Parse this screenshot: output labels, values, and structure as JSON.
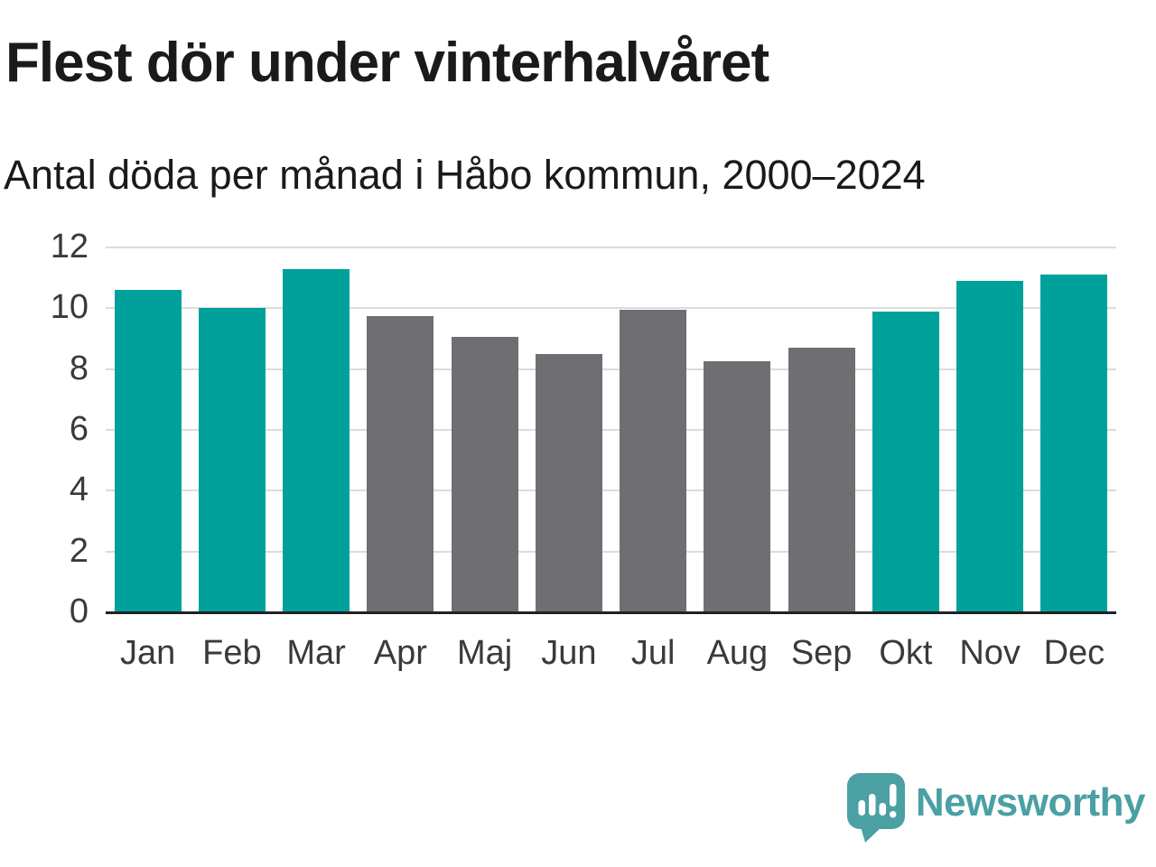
{
  "header": {
    "title": "Flest dör under vinterhalvåret",
    "subtitle": "Antal döda per månad i Håbo kommun, 2000–2024"
  },
  "chart_data": {
    "type": "bar",
    "title": "Flest dör under vinterhalvåret",
    "subtitle": "Antal döda per månad i Håbo kommun, 2000–2024",
    "categories": [
      "Jan",
      "Feb",
      "Mar",
      "Apr",
      "Maj",
      "Jun",
      "Jul",
      "Aug",
      "Sep",
      "Okt",
      "Nov",
      "Dec"
    ],
    "values": [
      10.6,
      10.0,
      11.3,
      9.75,
      9.05,
      8.5,
      9.95,
      8.25,
      8.7,
      9.9,
      10.9,
      11.1
    ],
    "bar_groups": [
      "winter",
      "winter",
      "winter",
      "summer",
      "summer",
      "summer",
      "summer",
      "summer",
      "summer",
      "winter",
      "winter",
      "winter"
    ],
    "group_colors": {
      "winter": "#00A19A",
      "summer": "#6F6E73"
    },
    "xlabel": "",
    "ylabel": "",
    "ylim": [
      0,
      12
    ],
    "yticks": [
      0,
      2,
      4,
      6,
      8,
      10,
      12
    ],
    "grid": true,
    "legend": false,
    "gridline_color": "#DCDCDC",
    "axis_color": "#222222"
  },
  "footer": {
    "brand": "Newsworthy",
    "brand_color": "#4AA0A3",
    "logo_icon": "newsworthy-speech-bubble-bar-chart-icon"
  }
}
